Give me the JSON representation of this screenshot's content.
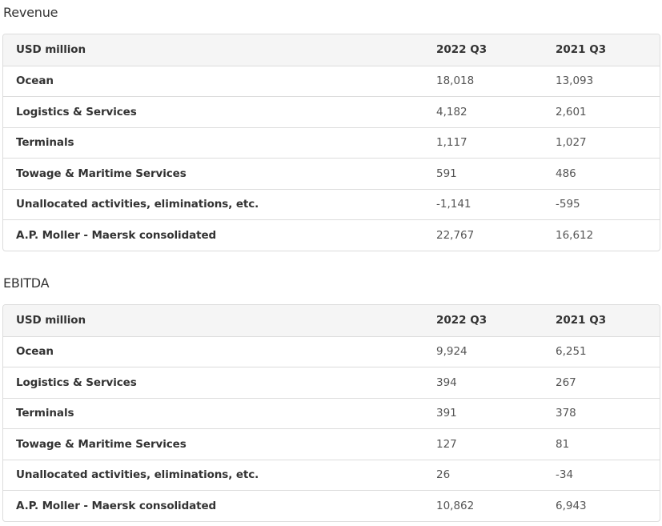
{
  "revenue": {
    "title": "Revenue",
    "header": {
      "label": "USD million",
      "col1": "2022 Q3",
      "col2": "2021 Q3"
    },
    "rows": [
      {
        "label": "Ocean",
        "v1": "18,018",
        "v2": "13,093"
      },
      {
        "label": "Logistics & Services",
        "v1": "4,182",
        "v2": "2,601"
      },
      {
        "label": "Terminals",
        "v1": "1,117",
        "v2": "1,027"
      },
      {
        "label": "Towage & Maritime Services",
        "v1": "591",
        "v2": "486"
      },
      {
        "label": "Unallocated activities, eliminations, etc.",
        "v1": "-1,141",
        "v2": "-595"
      },
      {
        "label": "A.P. Moller - Maersk consolidated",
        "v1": "22,767",
        "v2": "16,612"
      }
    ]
  },
  "ebitda": {
    "title": "EBITDA",
    "header": {
      "label": "USD million",
      "col1": "2022 Q3",
      "col2": "2021 Q3"
    },
    "rows": [
      {
        "label": "Ocean",
        "v1": "9,924",
        "v2": "6,251"
      },
      {
        "label": "Logistics & Services",
        "v1": "394",
        "v2": "267"
      },
      {
        "label": "Terminals",
        "v1": "391",
        "v2": "378"
      },
      {
        "label": "Towage & Maritime Services",
        "v1": "127",
        "v2": "81"
      },
      {
        "label": "Unallocated activities, eliminations, etc.",
        "v1": "26",
        "v2": "-34"
      },
      {
        "label": "A.P. Moller - Maersk consolidated",
        "v1": "10,862",
        "v2": "6,943"
      }
    ]
  }
}
